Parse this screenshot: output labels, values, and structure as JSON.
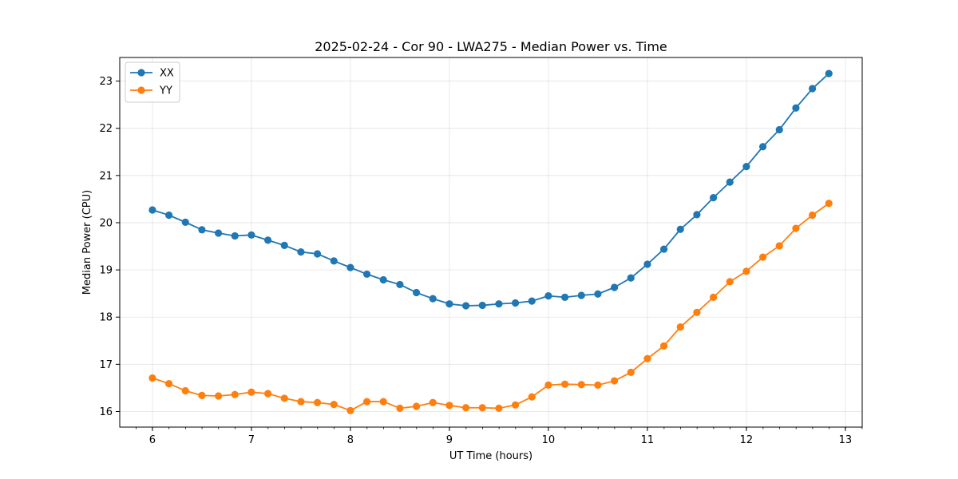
{
  "chart_data": {
    "type": "line",
    "title": "2025-02-24 - Cor 90 - LWA275 - Median Power vs. Time",
    "xlabel": "UT Time (hours)",
    "ylabel": "Median Power (CPU)",
    "xlim": [
      5.67,
      13.17
    ],
    "ylim": [
      15.67,
      23.5
    ],
    "xticks": [
      6,
      7,
      8,
      9,
      10,
      11,
      12,
      13
    ],
    "yticks": [
      16,
      17,
      18,
      19,
      20,
      21,
      22,
      23
    ],
    "x_minor_step": 0.1667,
    "grid": true,
    "legend_position": "upper-left",
    "x": [
      6.0,
      6.1667,
      6.3333,
      6.5,
      6.6667,
      6.8333,
      7.0,
      7.1667,
      7.3333,
      7.5,
      7.6667,
      7.8333,
      8.0,
      8.1667,
      8.3333,
      8.5,
      8.6667,
      8.8333,
      9.0,
      9.1667,
      9.3333,
      9.5,
      9.6667,
      9.8333,
      10.0,
      10.1667,
      10.3333,
      10.5,
      10.6667,
      10.8333,
      11.0,
      11.1667,
      11.3333,
      11.5,
      11.6667,
      11.8333,
      12.0,
      12.1667,
      12.3333,
      12.5,
      12.6667,
      12.8333
    ],
    "series": [
      {
        "name": "XX",
        "color": "#1f77b4",
        "values": [
          20.27,
          20.16,
          20.01,
          19.85,
          19.78,
          19.72,
          19.74,
          19.63,
          19.52,
          19.38,
          19.34,
          19.19,
          19.05,
          18.91,
          18.79,
          18.69,
          18.52,
          18.39,
          18.28,
          18.24,
          18.25,
          18.28,
          18.3,
          18.34,
          18.45,
          18.42,
          18.46,
          18.49,
          18.63,
          18.83,
          19.12,
          19.44,
          19.86,
          20.17,
          20.53,
          20.86,
          21.19,
          21.61,
          21.97,
          22.43,
          22.84,
          23.16
        ]
      },
      {
        "name": "YY",
        "color": "#ff7f0e",
        "values": [
          16.71,
          16.59,
          16.44,
          16.34,
          16.33,
          16.36,
          16.41,
          16.38,
          16.28,
          16.21,
          16.19,
          16.15,
          16.02,
          16.21,
          16.21,
          16.07,
          16.11,
          16.19,
          16.13,
          16.08,
          16.08,
          16.07,
          16.14,
          16.31,
          16.56,
          16.58,
          16.57,
          16.56,
          16.65,
          16.83,
          17.12,
          17.39,
          17.79,
          18.1,
          18.42,
          18.75,
          18.97,
          19.27,
          19.51,
          19.88,
          20.16,
          20.41
        ]
      }
    ]
  }
}
